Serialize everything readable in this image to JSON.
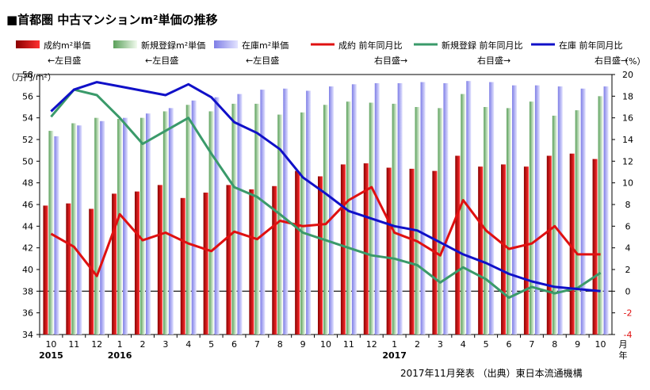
{
  "title": "■首都圏 中古マンションm²単価の推移",
  "footer": "2017年11月発表 （出典）東日本流通機構",
  "chart_data": {
    "type": "bar",
    "left_axis_unit": "（万円/m²）",
    "right_axis_unit": "（%）",
    "ylim_left": [
      34,
      58
    ],
    "ylim_right": [
      -4,
      20
    ],
    "left_ticks": [
      "34",
      "36",
      "38",
      "40",
      "42",
      "44",
      "46",
      "48",
      "50",
      "52",
      "54",
      "56",
      "58"
    ],
    "right_ticks": [
      "-4",
      "-2",
      "0",
      "2",
      "4",
      "6",
      "8",
      "10",
      "12",
      "14",
      "16",
      "18",
      "20"
    ],
    "x_axis_unit": "月\n年",
    "categories": [
      "10",
      "11",
      "12",
      "1",
      "2",
      "3",
      "4",
      "5",
      "6",
      "7",
      "8",
      "9",
      "10",
      "11",
      "12",
      "1",
      "2",
      "3",
      "4",
      "5",
      "6",
      "7",
      "8",
      "9",
      "10"
    ],
    "year_labels": [
      {
        "index": 0,
        "text": "2015"
      },
      {
        "index": 3,
        "text": "2016"
      },
      {
        "index": 15,
        "text": "2017"
      }
    ],
    "legend": [
      {
        "name": "成約m²単価",
        "note": "←左目盛",
        "kind": "bar",
        "color": "#cc1111"
      },
      {
        "name": "新規登録m²単価",
        "note": "←左目盛",
        "kind": "bar",
        "color": "#a9d29a"
      },
      {
        "name": "在庫m²単価",
        "note": "←左目盛",
        "kind": "bar",
        "color": "#b3b3f0"
      },
      {
        "name": "成約 前年同月比",
        "note": "右目盛→",
        "kind": "line",
        "color": "#e01010"
      },
      {
        "name": "新規登録 前年同月比",
        "note": "右目盛→",
        "kind": "line",
        "color": "#3a9a6a"
      },
      {
        "name": "在庫 前年同月比",
        "note": "右目盛→",
        "kind": "line",
        "color": "#1010c8"
      }
    ],
    "bar_series": [
      {
        "name": "成約m²単価",
        "color": "#cc1111",
        "values": [
          45.9,
          46.1,
          45.6,
          47.0,
          47.2,
          47.8,
          46.6,
          47.1,
          47.8,
          47.4,
          47.7,
          49.1,
          48.6,
          49.7,
          49.8,
          49.4,
          49.3,
          49.1,
          50.5,
          49.5,
          49.7,
          49.5,
          50.5,
          50.7,
          50.2
        ]
      },
      {
        "name": "新規登録m²単価",
        "color": "#a9d29a",
        "values": [
          52.8,
          53.5,
          54.0,
          53.9,
          54.0,
          54.6,
          55.2,
          54.6,
          55.3,
          55.3,
          54.3,
          54.5,
          55.2,
          55.5,
          55.4,
          55.3,
          55.0,
          54.9,
          56.2,
          55.0,
          54.9,
          55.5,
          54.2,
          54.7,
          56.0
        ]
      },
      {
        "name": "在庫m²単価",
        "color": "#b3b3f0",
        "values": [
          52.3,
          53.3,
          53.7,
          54.0,
          54.4,
          54.9,
          55.6,
          55.9,
          56.2,
          56.6,
          56.7,
          56.5,
          56.9,
          57.1,
          57.2,
          57.2,
          57.3,
          57.2,
          57.4,
          57.3,
          57.0,
          57.0,
          56.9,
          56.7,
          56.9
        ]
      }
    ],
    "line_series": [
      {
        "name": "成約 前年同月比",
        "color": "#e01010",
        "values": [
          5.3,
          4.1,
          1.4,
          7.1,
          4.7,
          5.4,
          4.4,
          3.7,
          5.5,
          4.8,
          6.5,
          6.0,
          6.2,
          8.4,
          9.6,
          5.4,
          4.6,
          3.3,
          8.4,
          5.6,
          3.9,
          4.4,
          6.0,
          3.4,
          3.4
        ]
      },
      {
        "name": "新規登録 前年同月比",
        "color": "#3a9a6a",
        "values": [
          16.1,
          18.6,
          18.1,
          16.0,
          13.6,
          14.8,
          16.0,
          12.7,
          9.6,
          8.7,
          7.1,
          5.4,
          4.7,
          4.0,
          3.3,
          3.0,
          2.4,
          0.8,
          2.2,
          1.1,
          -0.6,
          0.4,
          -0.2,
          0.3,
          1.7
        ]
      },
      {
        "name": "在庫 前年同月比",
        "color": "#1010c8",
        "values": [
          16.6,
          18.6,
          19.3,
          18.9,
          18.5,
          18.1,
          19.1,
          17.9,
          15.6,
          14.6,
          13.1,
          10.5,
          9.0,
          7.4,
          6.7,
          6.0,
          5.6,
          4.5,
          3.4,
          2.6,
          1.6,
          0.9,
          0.4,
          0.2,
          0.0
        ]
      }
    ]
  }
}
